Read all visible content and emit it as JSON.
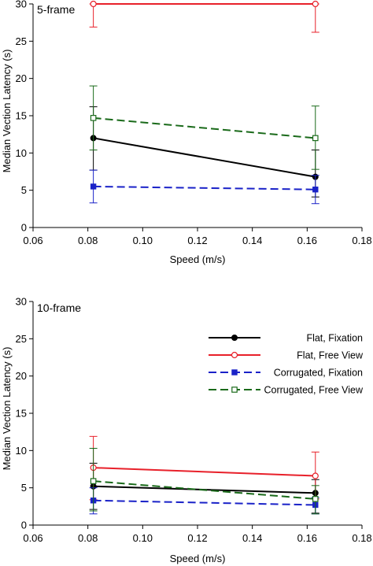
{
  "colors": {
    "flat_fixation": "#000000",
    "flat_free_view": "#e8202a",
    "corrugated_fixation": "#1a22c8",
    "corrugated_free_view": "#1a6a1a"
  },
  "legend": {
    "items": [
      {
        "key": "flat_fixation",
        "label": "Flat, Fixation"
      },
      {
        "key": "flat_free_view",
        "label": "Flat, Free View"
      },
      {
        "key": "corrugated_fixation",
        "label": "Corrugated, Fixation"
      },
      {
        "key": "corrugated_free_view",
        "label": "Corrugated, Free View"
      }
    ]
  },
  "chart_data": [
    {
      "type": "line",
      "title": "5-frame",
      "xlabel": "Speed (m/s)",
      "ylabel": "Median Vection Latency (s)",
      "xlim": [
        0.06,
        0.18
      ],
      "ylim": [
        0,
        30
      ],
      "xticks": [
        "0.06",
        "0.08",
        "0.10",
        "0.12",
        "0.14",
        "0.16",
        "0.18"
      ],
      "yticks": [
        "0",
        "5",
        "10",
        "15",
        "20",
        "25",
        "30"
      ],
      "x": [
        0.082,
        0.163
      ],
      "series": [
        {
          "key": "flat_fixation",
          "values": [
            12.0,
            6.8
          ],
          "err_low": [
            7.7,
            4.1
          ],
          "err_high": [
            16.2,
            10.4
          ],
          "marker": "filled-circle",
          "dash": "solid"
        },
        {
          "key": "flat_free_view",
          "values": [
            30.0,
            30.0
          ],
          "err_low": [
            26.9,
            26.2
          ],
          "err_high": [
            30.0,
            30.0
          ],
          "marker": "open-circle",
          "dash": "solid"
        },
        {
          "key": "corrugated_fixation",
          "values": [
            5.5,
            5.1
          ],
          "err_low": [
            3.3,
            3.2
          ],
          "err_high": [
            7.7,
            7.0
          ],
          "marker": "filled-square",
          "dash": "dashed"
        },
        {
          "key": "corrugated_free_view",
          "values": [
            14.7,
            12.0
          ],
          "err_low": [
            10.4,
            7.8
          ],
          "err_high": [
            19.0,
            16.3
          ],
          "marker": "open-square",
          "dash": "dashed"
        }
      ]
    },
    {
      "type": "line",
      "title": "10-frame",
      "xlabel": "Speed (m/s)",
      "ylabel": "Median Vection Latency (s)",
      "xlim": [
        0.06,
        0.18
      ],
      "ylim": [
        0,
        30
      ],
      "xticks": [
        "0.06",
        "0.08",
        "0.10",
        "0.12",
        "0.14",
        "0.16",
        "0.18"
      ],
      "yticks": [
        "0",
        "5",
        "10",
        "15",
        "20",
        "25",
        "30"
      ],
      "x": [
        0.082,
        0.163
      ],
      "series": [
        {
          "key": "flat_fixation",
          "values": [
            5.2,
            4.3
          ],
          "err_low": [
            2.1,
            1.6
          ],
          "err_high": [
            8.3,
            6.1
          ],
          "marker": "filled-circle",
          "dash": "solid"
        },
        {
          "key": "flat_free_view",
          "values": [
            7.7,
            6.6
          ],
          "err_low": [
            3.4,
            3.5
          ],
          "err_high": [
            11.9,
            9.8
          ],
          "marker": "open-circle",
          "dash": "solid"
        },
        {
          "key": "corrugated_fixation",
          "values": [
            3.3,
            2.7
          ],
          "err_low": [
            1.5,
            1.5
          ],
          "err_high": [
            5.0,
            3.7
          ],
          "marker": "filled-square",
          "dash": "dashed"
        },
        {
          "key": "corrugated_free_view",
          "values": [
            5.9,
            3.5
          ],
          "err_low": [
            1.9,
            1.5
          ],
          "err_high": [
            10.3,
            5.3
          ],
          "marker": "open-square",
          "dash": "dashed"
        }
      ]
    }
  ]
}
